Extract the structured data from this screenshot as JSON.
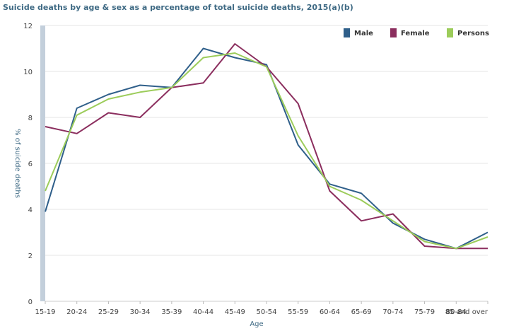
{
  "chart_data": {
    "type": "line",
    "title": "Suicide deaths by age & sex as a percentage of total suicide deaths, 2015(a)(b)",
    "xlabel": "Age",
    "ylabel": "% of suicide deaths",
    "ylim": [
      0,
      12
    ],
    "yticks": [
      0,
      2,
      4,
      6,
      8,
      10,
      12
    ],
    "grid": true,
    "legend_position": "top-right",
    "categories": [
      "15-19",
      "20-24",
      "25-29",
      "30-34",
      "35-39",
      "40-44",
      "45-49",
      "50-54",
      "55-59",
      "60-64",
      "65-69",
      "70-74",
      "75-79",
      "80-84",
      "85 and over"
    ],
    "series": [
      {
        "name": "Male",
        "color": "#2f5f8a",
        "values": [
          3.9,
          8.4,
          9.0,
          9.4,
          9.3,
          11.0,
          10.6,
          10.3,
          6.8,
          5.1,
          4.7,
          3.4,
          2.7,
          2.3,
          3.0
        ]
      },
      {
        "name": "Female",
        "color": "#8b2e5e",
        "values": [
          7.6,
          7.3,
          8.2,
          8.0,
          9.3,
          9.5,
          11.2,
          10.2,
          8.6,
          4.8,
          3.5,
          3.8,
          2.4,
          2.3,
          2.3
        ]
      },
      {
        "name": "Persons",
        "color": "#9ccc5a",
        "values": [
          4.8,
          8.1,
          8.8,
          9.1,
          9.3,
          10.6,
          10.8,
          10.2,
          7.2,
          5.0,
          4.4,
          3.5,
          2.6,
          2.3,
          2.8
        ]
      }
    ]
  }
}
